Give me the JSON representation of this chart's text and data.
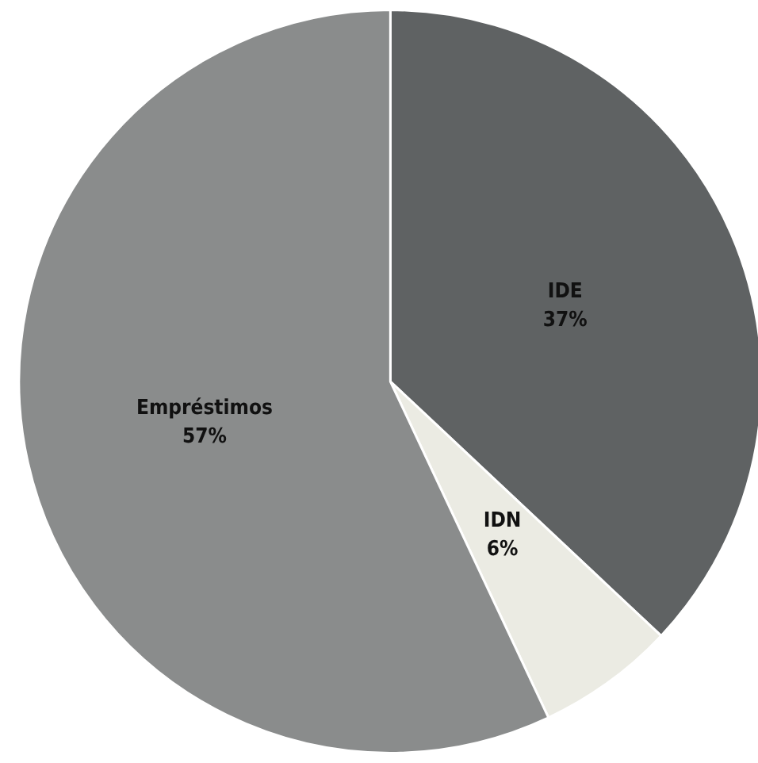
{
  "chart_data": {
    "type": "pie",
    "categories": [
      "IDE",
      "IDN",
      "Empréstimos"
    ],
    "values": [
      37,
      6,
      57
    ],
    "colors": [
      "#5f6263",
      "#ebebe3",
      "#8a8c8c"
    ],
    "value_labels": [
      "37%",
      "6%",
      "57%"
    ]
  }
}
